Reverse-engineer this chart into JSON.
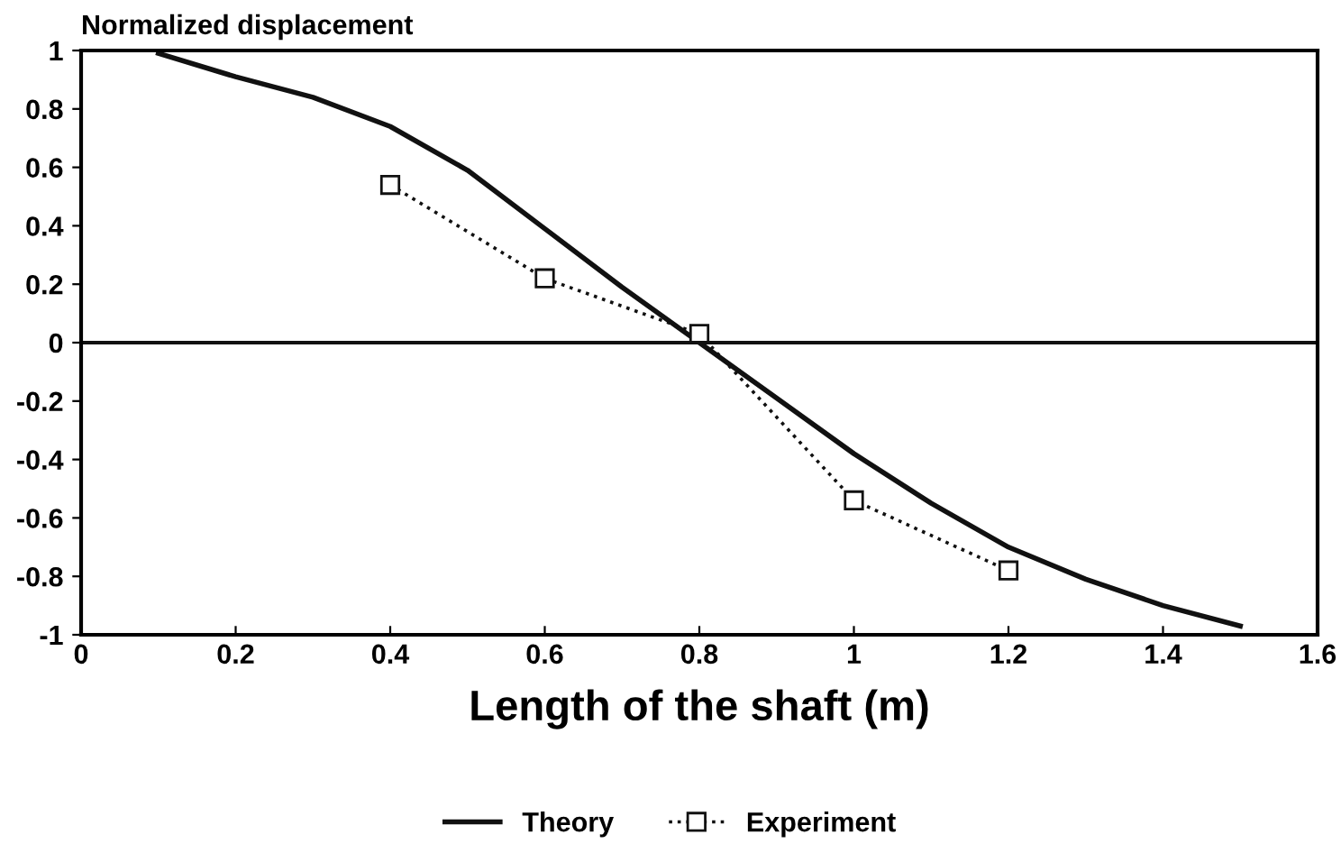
{
  "chart_data": {
    "type": "line",
    "xlabel": "Length of the shaft (m)",
    "ylabel": "Normalized displacement",
    "xlim": [
      0,
      1.6
    ],
    "ylim": [
      -1,
      1
    ],
    "xticks": [
      0,
      0.2,
      0.4,
      0.6,
      0.8,
      1,
      1.2,
      1.4,
      1.6
    ],
    "yticks": [
      -1,
      -0.8,
      -0.6,
      -0.4,
      -0.2,
      0,
      0.2,
      0.4,
      0.6,
      0.8,
      1
    ],
    "series": [
      {
        "name": "Theory",
        "color": "#111111",
        "line_style": "solid",
        "marker": "none",
        "x": [
          0.1,
          0.2,
          0.3,
          0.4,
          0.5,
          0.6,
          0.7,
          0.8,
          0.9,
          1.0,
          1.1,
          1.2,
          1.3,
          1.4,
          1.5
        ],
        "values": [
          0.99,
          0.91,
          0.84,
          0.74,
          0.59,
          0.39,
          0.19,
          0,
          -0.19,
          -0.38,
          -0.55,
          -0.7,
          -0.81,
          -0.9,
          -0.97
        ]
      },
      {
        "name": "Experiment",
        "color": "#111111",
        "line_style": "dotted",
        "marker": "square",
        "x": [
          0.4,
          0.6,
          0.8,
          1.0,
          1.2
        ],
        "values": [
          0.54,
          0.22,
          0.03,
          -0.54,
          -0.78
        ]
      }
    ],
    "ref_lines": [
      {
        "axis": "y",
        "value": 0,
        "color": "#111111",
        "line_style": "solid"
      }
    ],
    "grid": false,
    "legend": "bottom"
  }
}
